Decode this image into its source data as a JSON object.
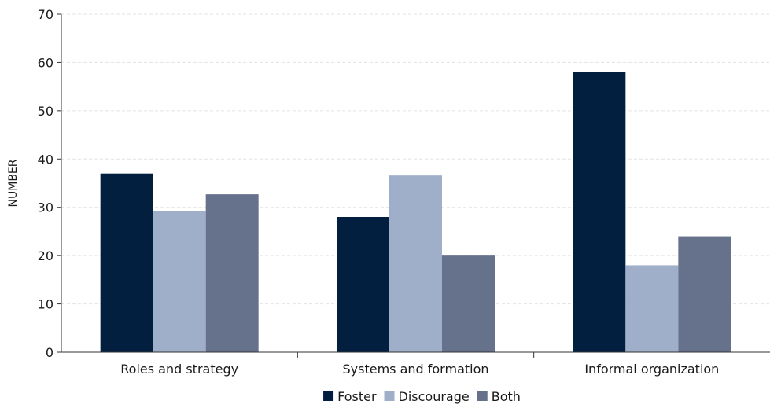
{
  "chart_data": {
    "type": "bar",
    "categories": [
      "Roles and strategy",
      "Systems and formation",
      "Informal organization"
    ],
    "series": [
      {
        "name": "Foster",
        "values": [
          37,
          28,
          58
        ],
        "color": "#021f40"
      },
      {
        "name": "Discourage",
        "values": [
          29.3,
          36.6,
          18
        ],
        "color": "#a0afc9"
      },
      {
        "name": "Both",
        "values": [
          32.7,
          20,
          24
        ],
        "color": "#66718c"
      }
    ],
    "ylabel": "NUMBER",
    "ylim": [
      0,
      70
    ],
    "yticks": [
      0,
      10,
      20,
      30,
      40,
      50,
      60,
      70
    ],
    "grid": true,
    "legend_position": "bottom"
  }
}
